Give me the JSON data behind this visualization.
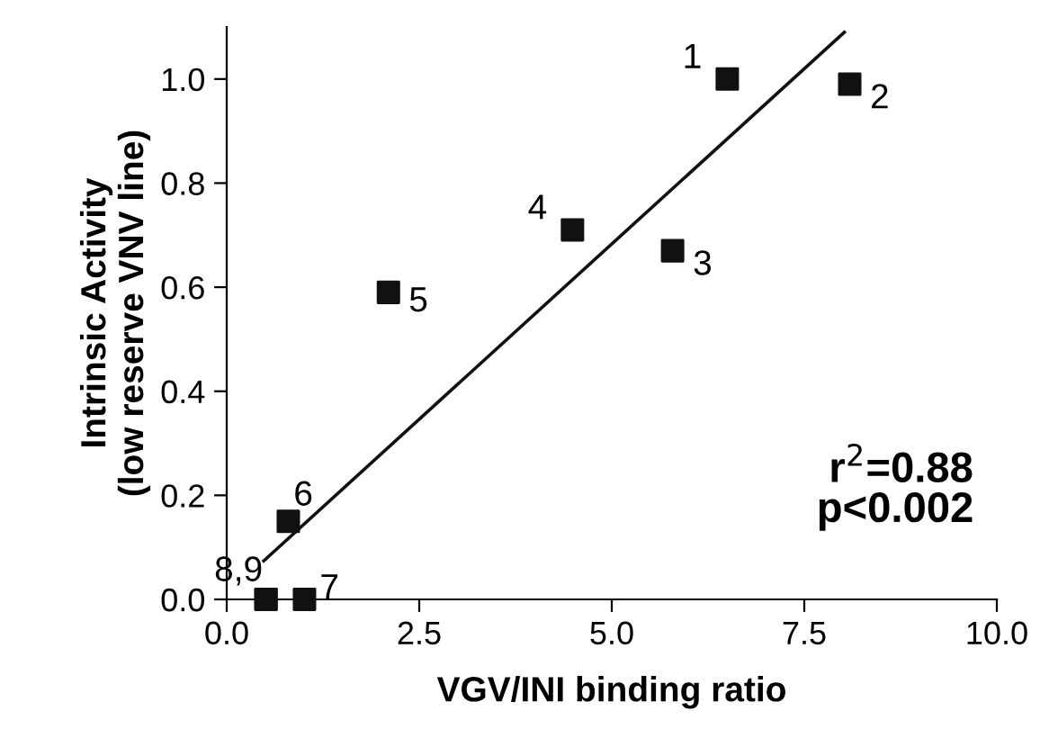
{
  "chart_data": {
    "type": "scatter",
    "xlabel": "VGV/INI binding ratio",
    "ylabel": "Intrinsic Activity\n(low reserve VNV line)",
    "xlim": [
      0,
      10
    ],
    "ylim": [
      0,
      1.1
    ],
    "xticks": [
      {
        "value": 0,
        "label": "0.0"
      },
      2.5,
      {
        "value": 5,
        "label": "5.0"
      },
      7.5,
      {
        "value": 10,
        "label": "10.0"
      }
    ],
    "yticks": [
      {
        "value": 0,
        "label": "0.0"
      },
      0.2,
      0.4,
      0.6,
      0.8,
      {
        "value": 1,
        "label": "1.0"
      }
    ],
    "grid": false,
    "legend": false,
    "marker": "square",
    "series": [
      {
        "color": "#111111",
        "x": [
          6.5,
          8.09,
          5.79,
          4.49,
          2.1,
          0.8,
          1.01,
          0.51,
          0.51
        ],
        "values": [
          1.0,
          0.99,
          0.67,
          0.71,
          0.59,
          0.15,
          0.0,
          0.0,
          0.0
        ]
      },
      {
        "type": "line",
        "color": "#111111",
        "line_style": "solid",
        "marker": "none",
        "x": [
          0.48,
          8.02
        ],
        "values": [
          0.074,
          1.09
        ]
      }
    ],
    "annotations": [
      {
        "text": "1",
        "x": 6.5,
        "y": 1.0
      },
      {
        "text": "2",
        "x": 8.09,
        "y": 0.99
      },
      {
        "text": "3",
        "x": 5.79,
        "y": 0.67
      },
      {
        "text": "4",
        "x": 4.49,
        "y": 0.71
      },
      {
        "text": "5",
        "x": 2.1,
        "y": 0.59
      },
      {
        "text": "6",
        "x": 0.8,
        "y": 0.15
      },
      {
        "text": "7",
        "x": 1.01,
        "y": 0.0
      },
      {
        "text": "8,9",
        "x": 0.51,
        "y": 0.0
      },
      "r$^{2}$=0.88\np<0.002"
    ]
  }
}
